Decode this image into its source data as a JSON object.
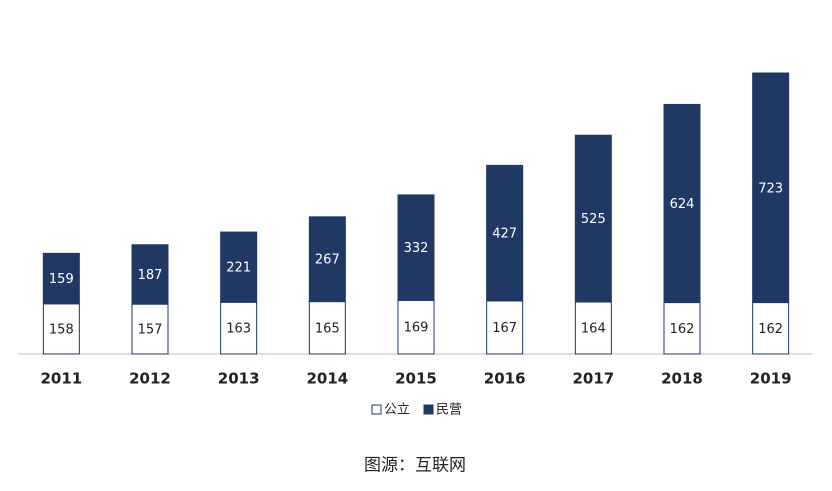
{
  "chart_data": {
    "type": "stacked_bar",
    "categories": [
      "2011",
      "2012",
      "2013",
      "2014",
      "2015",
      "2016",
      "2017",
      "2018",
      "2019"
    ],
    "series": [
      {
        "name": "公立",
        "color": "#ffffff",
        "values": [
          158,
          157,
          163,
          165,
          169,
          167,
          164,
          162,
          162
        ]
      },
      {
        "name": "民营",
        "color": "#1f3864",
        "values": [
          159,
          187,
          221,
          267,
          332,
          427,
          525,
          624,
          723
        ]
      }
    ],
    "source": "图源：互联网"
  }
}
